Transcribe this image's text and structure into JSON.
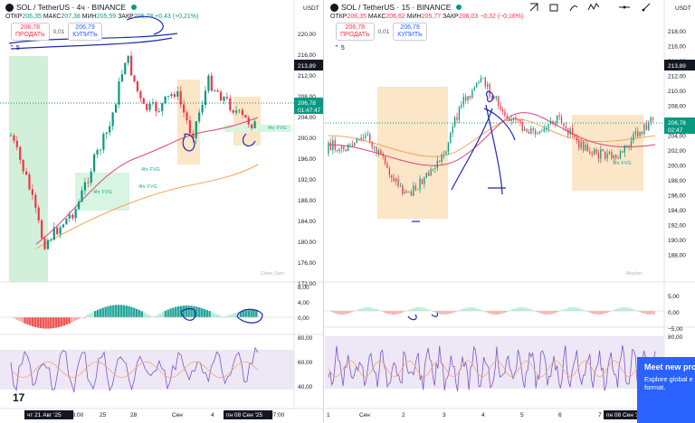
{
  "left": {
    "symbol": "SOL / TetherUS · 4ч · BINANCE",
    "ohlc": {
      "o_label": "ОТКР",
      "o": "206,35",
      "h_label": "МАКС",
      "h": "207,38",
      "l_label": "МИН",
      "l": "205,59",
      "c_label": "ЗАКР",
      "c": "206,78",
      "chg": "+0,43 (+0,21%)"
    },
    "sell_price": "206,78",
    "sell_label": "ПРОДАТЬ",
    "spread": "0,01",
    "buy_price": "206,79",
    "buy_label": "КУПИТЬ",
    "indicator_count": "5",
    "price_axis": [
      "220,00",
      "216,00",
      "212,00",
      "208,00",
      "204,00",
      "200,00",
      "196,00",
      "192,00",
      "188,00",
      "184,00",
      "180,00",
      "176,00",
      "172,00"
    ],
    "price_tag_top": "213,89",
    "price_tag": "206,78",
    "countdown": "01:47:47",
    "macd_axis": [
      "8,00",
      "4,00",
      "0,00"
    ],
    "rsi_axis": [
      "80,00",
      "60,00",
      "40,00"
    ],
    "time_axis": [
      "чт 21 Авг '25",
      "03:00",
      "25",
      "28",
      "Сен",
      "4",
      "пн 08 Сен '25",
      "07:00"
    ],
    "fvg_labels": [
      "4hr FVG",
      "4hr FVG",
      "4hr FVG",
      "4hr FVG"
    ],
    "currency": "USDT",
    "watermark": "Chew_Sam"
  },
  "right": {
    "symbol": "SOL / TetherUS · 15 · BINANCE",
    "ohlc": {
      "o_label": "ОТКР",
      "o": "206,35",
      "h_label": "МАКС",
      "h": "206,62",
      "l_label": "МИН",
      "l": "205,77",
      "c_label": "ЗАКР",
      "c": "206,03",
      "chg": "−0,32 (−0,16%)"
    },
    "sell_price": "206,78",
    "sell_label": "ПРОДАТЬ",
    "spread": "0,01",
    "buy_price": "206,79",
    "buy_label": "КУПИТЬ",
    "indicator_count": "5",
    "price_axis": [
      "218,00",
      "216,00",
      "214,00",
      "212,00",
      "210,00",
      "208,00",
      "206,00",
      "204,00",
      "202,00",
      "200,00",
      "198,00",
      "196,00",
      "194,00",
      "192,00",
      "190,00",
      "188,00"
    ],
    "price_tag_top": "213,89",
    "price_tag": "206,78",
    "countdown": "02:47",
    "macd_axis": [
      "5,00",
      "0,00",
      "−5,00"
    ],
    "rsi_axis": [
      "80,00",
      "60,00"
    ],
    "time_axis": [
      "1",
      "Сен",
      "2",
      "3",
      "4",
      "5",
      "6",
      "7",
      "пн 08 Сен '25",
      "8"
    ],
    "fvg_labels": [
      "4hr FVG"
    ],
    "currency": "USDT",
    "watermark": "Mephen"
  },
  "toolbar": {
    "icons": [
      "rectangle-tool-icon",
      "brush-tool-icon",
      "path-tool-icon",
      "pattern-tool-icon",
      "horizontal-line-tool-icon",
      "ray-tool-icon"
    ]
  },
  "toast": {
    "title": "Meet new pro",
    "line1": "Explore global e",
    "line2": "format."
  },
  "colors": {
    "up": "#089981",
    "down": "#f23645",
    "accent": "#2962ff",
    "fvg": "#d7f5e0",
    "zone": "#fbe6c7",
    "rsi_band": "#ede7f6"
  }
}
